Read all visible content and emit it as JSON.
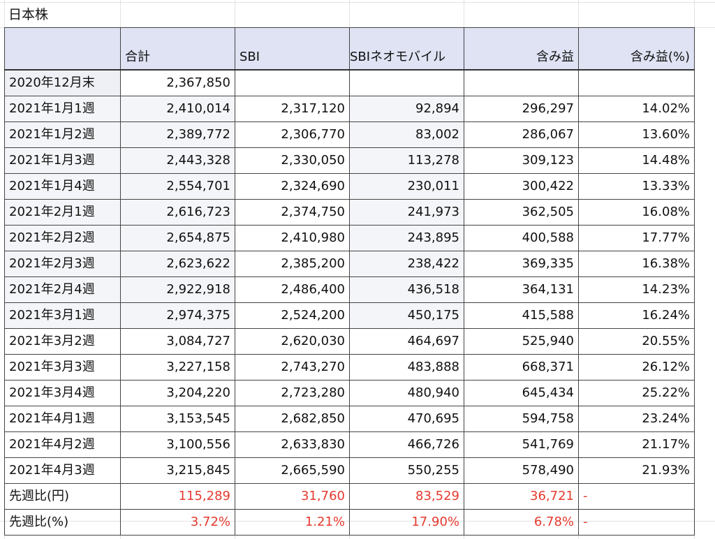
{
  "sheet": {
    "title": "日本株"
  },
  "table": {
    "headers": [
      "",
      "合計",
      "SBI",
      "SBIネオモバイル",
      "含み益",
      "含み益(%)"
    ],
    "rows": [
      [
        "2020年12月末",
        "2,367,850",
        "",
        "",
        "",
        ""
      ],
      [
        "2021年1月1週",
        "2,410,014",
        "2,317,120",
        "92,894",
        "296,297",
        "14.02%"
      ],
      [
        "2021年1月2週",
        "2,389,772",
        "2,306,770",
        "83,002",
        "286,067",
        "13.60%"
      ],
      [
        "2021年1月3週",
        "2,443,328",
        "2,330,050",
        "113,278",
        "309,123",
        "14.48%"
      ],
      [
        "2021年1月4週",
        "2,554,701",
        "2,324,690",
        "230,011",
        "300,422",
        "13.33%"
      ],
      [
        "2021年2月1週",
        "2,616,723",
        "2,374,750",
        "241,973",
        "362,505",
        "16.08%"
      ],
      [
        "2021年2月2週",
        "2,654,875",
        "2,410,980",
        "243,895",
        "400,588",
        "17.77%"
      ],
      [
        "2021年2月3週",
        "2,623,622",
        "2,385,200",
        "238,422",
        "369,335",
        "16.38%"
      ],
      [
        "2021年2月4週",
        "2,922,918",
        "2,486,400",
        "436,518",
        "364,131",
        "14.23%"
      ],
      [
        "2021年3月1週",
        "2,974,375",
        "2,524,200",
        "450,175",
        "415,588",
        "16.24%"
      ],
      [
        "2021年3月2週",
        "3,084,727",
        "2,620,030",
        "464,697",
        "525,940",
        "20.55%"
      ],
      [
        "2021年3月3週",
        "3,227,158",
        "2,743,270",
        "483,888",
        "668,371",
        "26.12%"
      ],
      [
        "2021年3月4週",
        "3,204,220",
        "2,723,280",
        "480,940",
        "645,434",
        "25.22%"
      ],
      [
        "2021年4月1週",
        "3,153,545",
        "2,682,850",
        "470,695",
        "594,758",
        "23.24%"
      ],
      [
        "2021年4月2週",
        "3,100,556",
        "2,633,830",
        "466,726",
        "541,769",
        "21.17%"
      ],
      [
        "2021年4月3週",
        "3,215,845",
        "2,665,590",
        "550,255",
        "578,490",
        "21.93%"
      ]
    ],
    "summary": [
      [
        "先週比(円)",
        "115,289",
        "31,760",
        "83,529",
        "36,721",
        "-"
      ],
      [
        "先週比(%)",
        "3.72%",
        "1.21%",
        "17.90%",
        "6.78%",
        "-"
      ]
    ]
  },
  "colors": {
    "header_bg": "#dfe3f4",
    "negative_red": "#e53a2f",
    "border": "#444444"
  }
}
